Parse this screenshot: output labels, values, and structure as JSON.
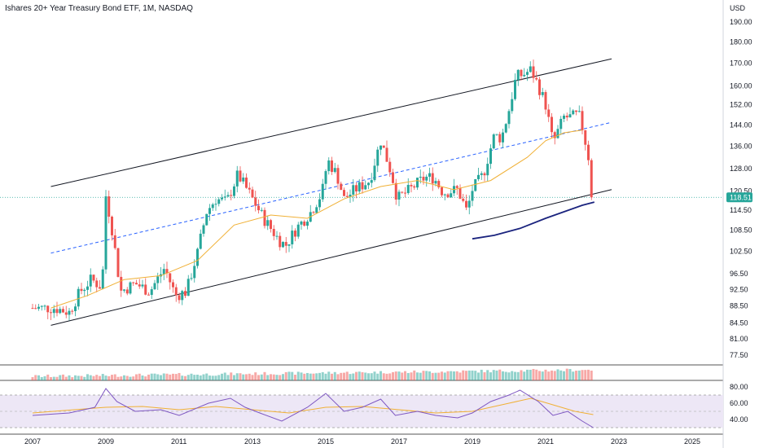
{
  "header": {
    "title": "Ishares 20+ Year Treasury Bond ETF, 1M, NASDAQ",
    "currency": "USD"
  },
  "price_badge": {
    "value": "118.51",
    "color": "#26a69a"
  },
  "colors": {
    "up": "#26a69a",
    "down": "#ef5350",
    "ma_slow": "#1a237e",
    "ma_fast": "#f0b035",
    "rsi_line": "#7e57c2",
    "rsi_band": "#ede7f6",
    "channel": "#131722",
    "midline": "#2962ff"
  },
  "chart_data": [
    {
      "type": "candlestick",
      "title": "Ishares 20+ Year Treasury Bond ETF, 1M, NASDAQ",
      "ylabel": "USD",
      "scale": "log",
      "ylim": [
        76,
        195
      ],
      "x_ticks": [
        "2007",
        "2009",
        "2011",
        "2013",
        "2015",
        "2017",
        "2019",
        "2021",
        "2023",
        "2025"
      ],
      "y_ticks": [
        "190.00",
        "180.00",
        "170.00",
        "160.00",
        "152.00",
        "144.00",
        "136.00",
        "128.00",
        "120.50",
        "114.50",
        "108.50",
        "102.50",
        "96.50",
        "92.50",
        "88.50",
        "84.50",
        "81.00",
        "77.50"
      ],
      "last_price": 118.51,
      "close_path": [
        [
          2007.0,
          88
        ],
        [
          2007.6,
          88
        ],
        [
          2008.0,
          87
        ],
        [
          2008.3,
          92
        ],
        [
          2008.6,
          95
        ],
        [
          2008.9,
          93
        ],
        [
          2009.0,
          119
        ],
        [
          2009.15,
          110
        ],
        [
          2009.4,
          92
        ],
        [
          2009.8,
          94
        ],
        [
          2010.2,
          92
        ],
        [
          2010.6,
          98
        ],
        [
          2010.9,
          91
        ],
        [
          2011.2,
          92
        ],
        [
          2011.5,
          102
        ],
        [
          2011.75,
          114
        ],
        [
          2012.0,
          118
        ],
        [
          2012.3,
          117
        ],
        [
          2012.6,
          126
        ],
        [
          2012.8,
          122
        ],
        [
          2013.0,
          118
        ],
        [
          2013.3,
          112
        ],
        [
          2013.7,
          106
        ],
        [
          2013.9,
          104
        ],
        [
          2014.2,
          109
        ],
        [
          2014.6,
          114
        ],
        [
          2014.9,
          120
        ],
        [
          2015.05,
          131
        ],
        [
          2015.3,
          126
        ],
        [
          2015.5,
          118
        ],
        [
          2015.8,
          121
        ],
        [
          2016.2,
          124
        ],
        [
          2016.5,
          138
        ],
        [
          2016.8,
          126
        ],
        [
          2016.95,
          118
        ],
        [
          2017.3,
          121
        ],
        [
          2017.7,
          125
        ],
        [
          2017.95,
          125
        ],
        [
          2018.2,
          120
        ],
        [
          2018.6,
          121
        ],
        [
          2018.85,
          114
        ],
        [
          2019.0,
          121
        ],
        [
          2019.3,
          126
        ],
        [
          2019.6,
          140
        ],
        [
          2019.8,
          139
        ],
        [
          2020.0,
          150
        ],
        [
          2020.2,
          164
        ],
        [
          2020.4,
          165
        ],
        [
          2020.6,
          167
        ],
        [
          2020.8,
          160
        ],
        [
          2021.0,
          152
        ],
        [
          2021.2,
          137
        ],
        [
          2021.5,
          147
        ],
        [
          2021.7,
          147
        ],
        [
          2021.9,
          148
        ],
        [
          2022.0,
          143
        ],
        [
          2022.2,
          130
        ],
        [
          2022.33,
          118.51
        ]
      ],
      "ma_slow_path": [
        [
          2019.0,
          106
        ],
        [
          2019.6,
          107
        ],
        [
          2020.3,
          109
        ],
        [
          2021.0,
          112
        ],
        [
          2021.5,
          114
        ],
        [
          2022.0,
          116
        ],
        [
          2022.33,
          117
        ]
      ],
      "ma_fast_path": [
        [
          2007.5,
          88
        ],
        [
          2008.5,
          91
        ],
        [
          2009.5,
          95
        ],
        [
          2010.5,
          96
        ],
        [
          2011.5,
          100
        ],
        [
          2012.5,
          110
        ],
        [
          2013.5,
          113
        ],
        [
          2014.5,
          112
        ],
        [
          2015.5,
          118
        ],
        [
          2016.5,
          122
        ],
        [
          2017.5,
          124
        ],
        [
          2018.5,
          121
        ],
        [
          2019.5,
          124
        ],
        [
          2020.5,
          132
        ],
        [
          2021.0,
          138
        ],
        [
          2021.5,
          141
        ],
        [
          2022.0,
          142
        ]
      ],
      "channel_lines": {
        "upper": [
          [
            2007.5,
            122
          ],
          [
            2022.8,
            172
          ]
        ],
        "middle": [
          [
            2007.5,
            102
          ],
          [
            2022.8,
            145
          ]
        ],
        "lower": [
          [
            2007.5,
            84
          ],
          [
            2022.8,
            121
          ]
        ]
      }
    },
    {
      "type": "bar",
      "title": "",
      "ylabel": "Volume",
      "volume_pattern": "rising trend with spike near 2020 and 2022"
    },
    {
      "type": "line",
      "title": "",
      "ylabel": "RSI",
      "ylim": [
        25,
        85
      ],
      "y_ticks": [
        "80.00",
        "60.00",
        "40.00"
      ],
      "band": [
        30,
        70
      ],
      "rsi_path": [
        [
          2007.0,
          45
        ],
        [
          2008.0,
          48
        ],
        [
          2008.7,
          55
        ],
        [
          2009.0,
          78
        ],
        [
          2009.3,
          62
        ],
        [
          2009.8,
          50
        ],
        [
          2010.5,
          52
        ],
        [
          2011.0,
          45
        ],
        [
          2011.8,
          60
        ],
        [
          2012.4,
          66
        ],
        [
          2012.8,
          55
        ],
        [
          2013.2,
          48
        ],
        [
          2013.8,
          38
        ],
        [
          2014.5,
          55
        ],
        [
          2015.0,
          72
        ],
        [
          2015.5,
          50
        ],
        [
          2016.0,
          55
        ],
        [
          2016.5,
          65
        ],
        [
          2016.9,
          45
        ],
        [
          2017.5,
          50
        ],
        [
          2018.0,
          45
        ],
        [
          2018.6,
          42
        ],
        [
          2019.0,
          48
        ],
        [
          2019.5,
          62
        ],
        [
          2020.0,
          70
        ],
        [
          2020.3,
          76
        ],
        [
          2020.8,
          62
        ],
        [
          2021.2,
          45
        ],
        [
          2021.6,
          50
        ],
        [
          2022.0,
          38
        ],
        [
          2022.3,
          30
        ]
      ],
      "rsi_ma_path": [
        [
          2007.0,
          48
        ],
        [
          2009.0,
          55
        ],
        [
          2010.0,
          56
        ],
        [
          2011.0,
          52
        ],
        [
          2012.0,
          56
        ],
        [
          2013.0,
          52
        ],
        [
          2014.0,
          48
        ],
        [
          2015.0,
          55
        ],
        [
          2016.0,
          56
        ],
        [
          2017.0,
          52
        ],
        [
          2018.0,
          48
        ],
        [
          2019.0,
          50
        ],
        [
          2020.0,
          60
        ],
        [
          2020.6,
          66
        ],
        [
          2021.2,
          58
        ],
        [
          2021.8,
          50
        ],
        [
          2022.3,
          46
        ]
      ]
    }
  ]
}
